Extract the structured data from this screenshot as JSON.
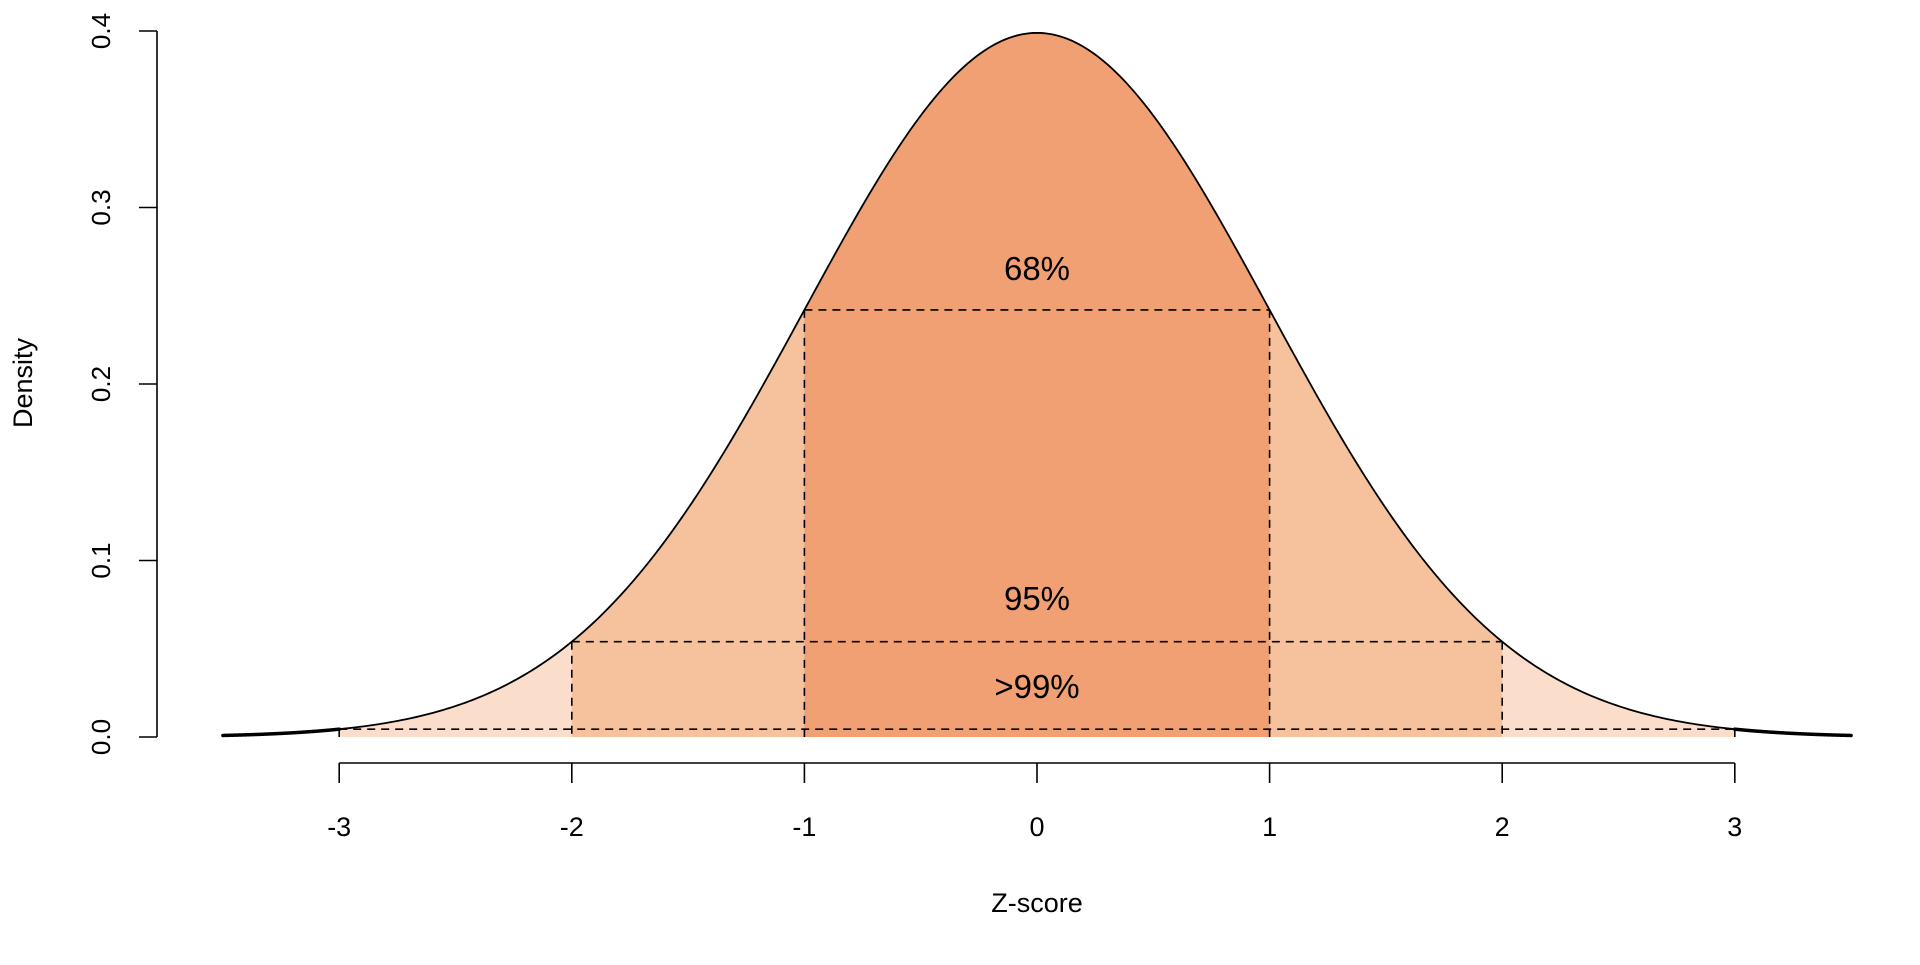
{
  "chart_data": {
    "type": "area",
    "title": "",
    "xlabel": "Z-score",
    "ylabel": "Density",
    "xlim": [
      -3.5,
      3.5
    ],
    "ylim": [
      0,
      0.4
    ],
    "x_ticks": [
      "-3",
      "-2",
      "-1",
      "0",
      "1",
      "2",
      "3"
    ],
    "x_tick_values": [
      -3,
      -2,
      -1,
      0,
      1,
      2,
      3
    ],
    "y_ticks": [
      "0.0",
      "0.1",
      "0.2",
      "0.3",
      "0.4"
    ],
    "y_tick_values": [
      0,
      0.1,
      0.2,
      0.3,
      0.4
    ],
    "curve": "standard normal density",
    "grid": false,
    "regions": [
      {
        "from": -3,
        "to": 3,
        "label": ">99%",
        "color": "#FADDCB",
        "label_y": 0.022
      },
      {
        "from": -2,
        "to": 2,
        "label": "95%",
        "color": "#F5C29D",
        "label_y": 0.072
      },
      {
        "from": -1,
        "to": 1,
        "label": "68%",
        "color": "#F0A072",
        "label_y": 0.259
      }
    ]
  }
}
